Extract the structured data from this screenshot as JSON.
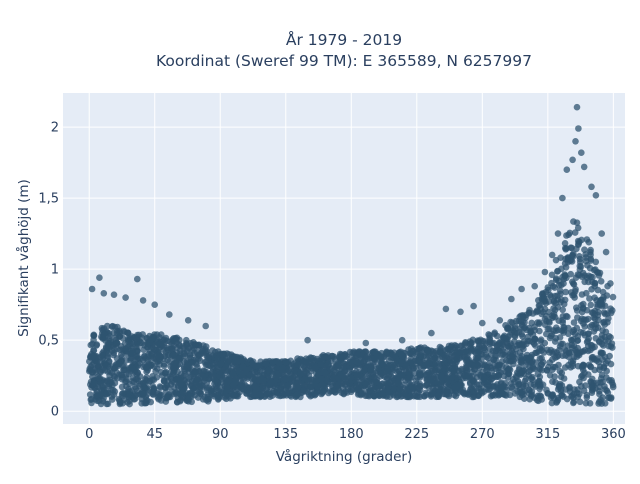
{
  "chart_data": {
    "type": "scatter",
    "title": "År 1979 - 2019",
    "subtitle": "Koordinat (Sweref 99 TM): E 365589, N 6257997",
    "xlabel": "Vågriktning (grader)",
    "ylabel": "Signifikant våghöjd (m)",
    "xlim": [
      -18,
      368
    ],
    "ylim": [
      -0.09,
      2.24
    ],
    "x_ticks": [
      0,
      45,
      90,
      135,
      180,
      225,
      270,
      315,
      360
    ],
    "x_tick_labels": [
      "0",
      "45",
      "90",
      "135",
      "180",
      "225",
      "270",
      "315",
      "360"
    ],
    "y_ticks": [
      0,
      0.5,
      1,
      1.5,
      2
    ],
    "y_tick_labels": [
      "0",
      "0,5",
      "1",
      "1,5",
      "2"
    ],
    "grid": true,
    "legend": "none",
    "colors": {
      "marker": "#2f5470",
      "plot_bg": "#e5ecf6",
      "grid": "#ffffff",
      "text": "#2a3f5f"
    },
    "envelope": {
      "direction": [
        0,
        10,
        20,
        30,
        45,
        60,
        75,
        90,
        105,
        120,
        135,
        150,
        165,
        180,
        195,
        210,
        225,
        240,
        255,
        270,
        285,
        300,
        310,
        320,
        330,
        335,
        340,
        350,
        360
      ],
      "lower_height": [
        0.05,
        0.05,
        0.05,
        0.05,
        0.06,
        0.06,
        0.06,
        0.08,
        0.1,
        0.1,
        0.1,
        0.1,
        0.12,
        0.12,
        0.1,
        0.1,
        0.1,
        0.1,
        0.1,
        0.1,
        0.1,
        0.08,
        0.05,
        0.05,
        0.05,
        0.05,
        0.05,
        0.05,
        0.05
      ],
      "upper_height": [
        0.55,
        0.6,
        0.6,
        0.55,
        0.55,
        0.52,
        0.48,
        0.42,
        0.38,
        0.35,
        0.36,
        0.38,
        0.4,
        0.42,
        0.42,
        0.42,
        0.45,
        0.45,
        0.48,
        0.52,
        0.6,
        0.7,
        0.8,
        1.05,
        1.3,
        1.4,
        1.3,
        1.0,
        0.85
      ]
    },
    "outliers": [
      {
        "x": 7,
        "y": 0.94
      },
      {
        "x": 2,
        "y": 0.86
      },
      {
        "x": 10,
        "y": 0.83
      },
      {
        "x": 17,
        "y": 0.82
      },
      {
        "x": 33,
        "y": 0.93
      },
      {
        "x": 25,
        "y": 0.8
      },
      {
        "x": 37,
        "y": 0.78
      },
      {
        "x": 45,
        "y": 0.75
      },
      {
        "x": 55,
        "y": 0.68
      },
      {
        "x": 68,
        "y": 0.64
      },
      {
        "x": 80,
        "y": 0.6
      },
      {
        "x": 150,
        "y": 0.5
      },
      {
        "x": 190,
        "y": 0.48
      },
      {
        "x": 215,
        "y": 0.5
      },
      {
        "x": 235,
        "y": 0.55
      },
      {
        "x": 245,
        "y": 0.72
      },
      {
        "x": 255,
        "y": 0.7
      },
      {
        "x": 264,
        "y": 0.74
      },
      {
        "x": 270,
        "y": 0.62
      },
      {
        "x": 282,
        "y": 0.64
      },
      {
        "x": 290,
        "y": 0.79
      },
      {
        "x": 297,
        "y": 0.86
      },
      {
        "x": 306,
        "y": 0.88
      },
      {
        "x": 313,
        "y": 0.98
      },
      {
        "x": 318,
        "y": 1.1
      },
      {
        "x": 322,
        "y": 1.25
      },
      {
        "x": 325,
        "y": 1.5
      },
      {
        "x": 328,
        "y": 1.7
      },
      {
        "x": 332,
        "y": 1.77
      },
      {
        "x": 334,
        "y": 1.9
      },
      {
        "x": 336,
        "y": 1.99
      },
      {
        "x": 335,
        "y": 2.14
      },
      {
        "x": 338,
        "y": 1.82
      },
      {
        "x": 340,
        "y": 1.72
      },
      {
        "x": 345,
        "y": 1.58
      },
      {
        "x": 348,
        "y": 1.52
      },
      {
        "x": 352,
        "y": 1.25
      },
      {
        "x": 355,
        "y": 1.12
      },
      {
        "x": 358,
        "y": 0.9
      }
    ]
  }
}
